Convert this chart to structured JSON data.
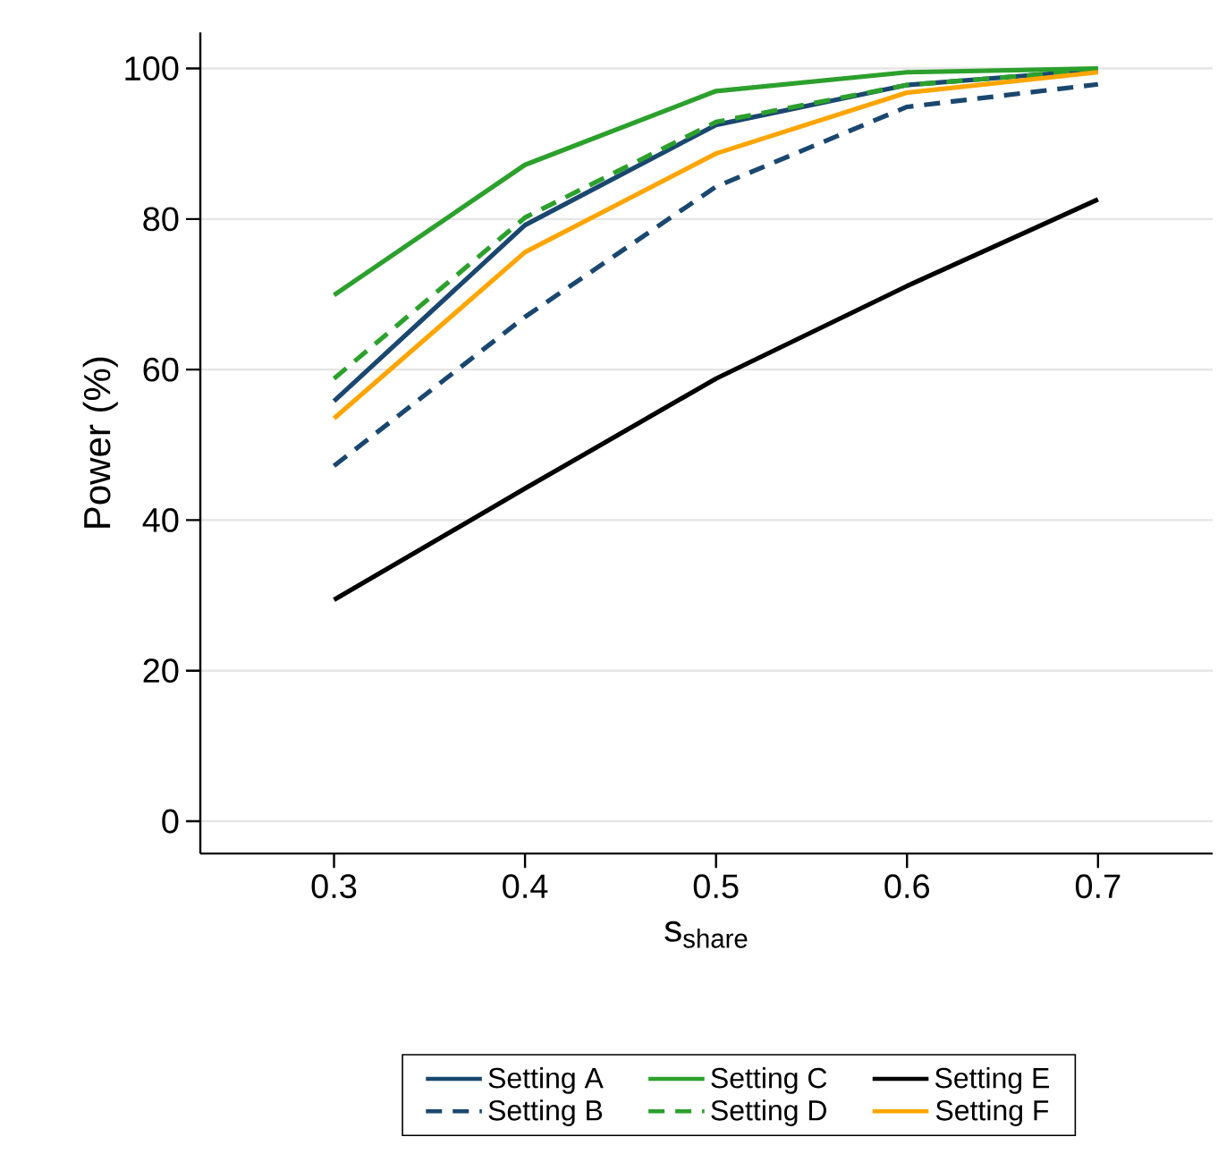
{
  "chart_data": {
    "type": "line",
    "xlabel": "s$_{share}$",
    "ylabel": "Power (%)",
    "x": [
      0.3,
      0.4,
      0.5,
      0.6,
      0.7
    ],
    "series": [
      {
        "name": "Setting A",
        "color": "#1a476f",
        "line_style": "solid",
        "values": [
          55.8,
          79.2,
          92.5,
          97.8,
          99.8
        ]
      },
      {
        "name": "Setting B",
        "color": "#1a476f",
        "line_style": "dashed",
        "values": [
          47.2,
          67,
          84.3,
          94.9,
          97.9
        ]
      },
      {
        "name": "Setting C",
        "color": "#2ca02c",
        "line_style": "solid",
        "values": [
          69.9,
          87.2,
          97,
          99.5,
          100
        ]
      },
      {
        "name": "Setting D",
        "color": "#2ca02c",
        "line_style": "dashed",
        "values": [
          58.8,
          80.2,
          92.9,
          97.8,
          99.8
        ]
      },
      {
        "name": "Setting E",
        "color": "#000000",
        "line_style": "solid",
        "values": [
          29.4,
          44.2,
          58.8,
          71.1,
          82.6
        ]
      },
      {
        "name": "Setting F",
        "color": "#ffa500",
        "line_style": "solid",
        "values": [
          53.5,
          75.6,
          88.7,
          96.8,
          99.5
        ]
      }
    ],
    "xlim": [
      0.23,
      0.76
    ],
    "ylim": [
      -4.3,
      104.8
    ],
    "xticks": [
      {
        "value": 0.3,
        "label": "0.3"
      },
      {
        "value": 0.4,
        "label": "0.4"
      },
      {
        "value": 0.5,
        "label": "0.5"
      },
      {
        "value": 0.6,
        "label": "0.6"
      },
      {
        "value": 0.7,
        "label": "0.7"
      }
    ],
    "yticks": [
      0,
      20,
      40,
      60,
      80,
      100
    ],
    "grid": "y",
    "legend": "bottom",
    "marker": "none"
  }
}
